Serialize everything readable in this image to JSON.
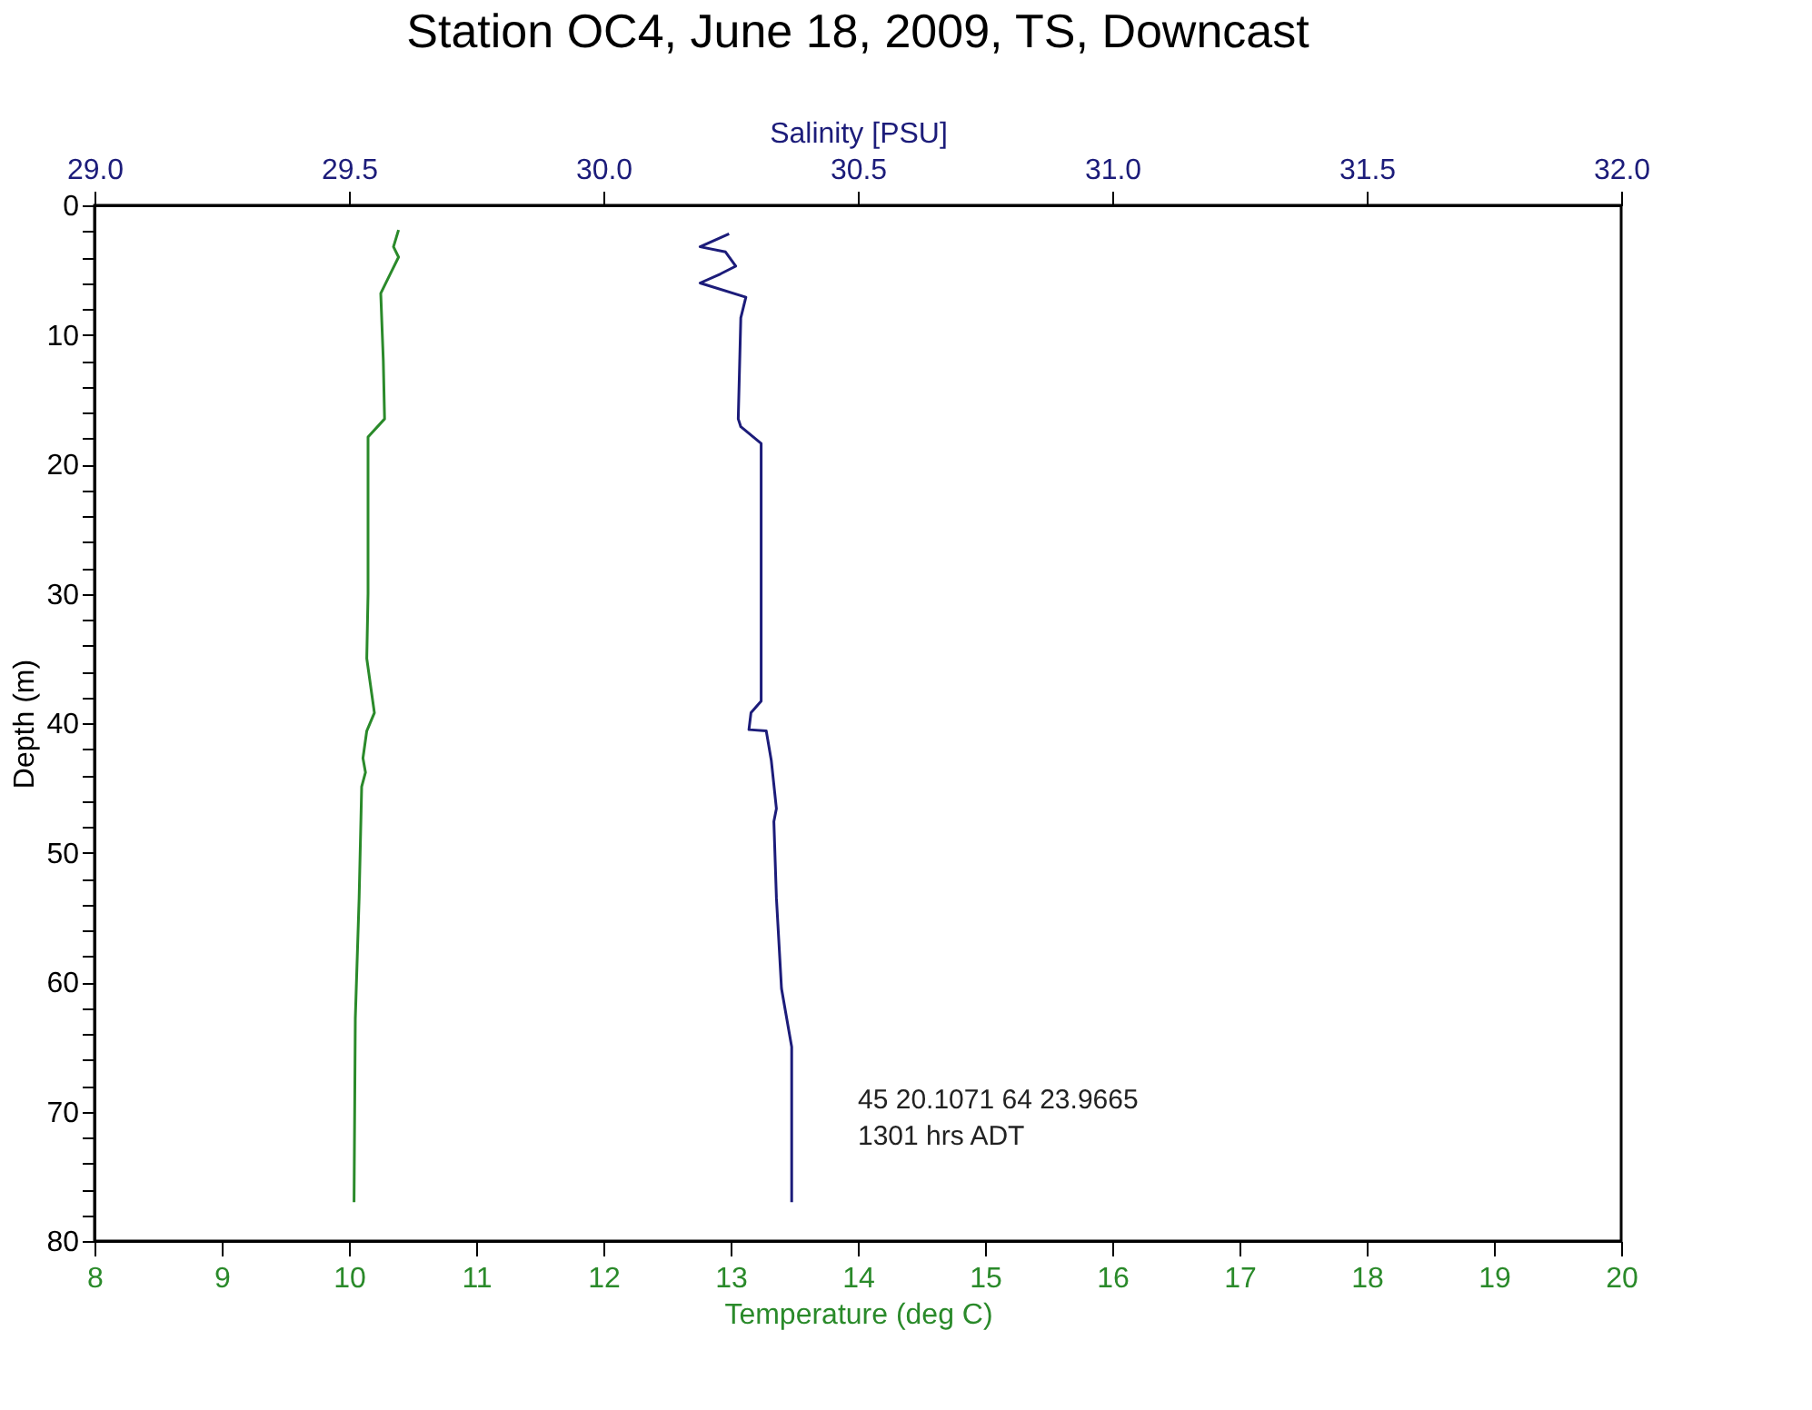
{
  "chart_data": {
    "type": "line",
    "title": "Station OC4, June 18, 2009, TS, Downcast",
    "xlabel": "Temperature (deg C)",
    "x2label": "Salinity [PSU]",
    "ylabel": "Depth (m)",
    "series": [
      {
        "color": "#2a8a2a",
        "x": [
          10.39,
          10.35,
          10.39,
          10.32,
          10.25,
          10.27,
          10.28,
          10.15,
          10.15,
          10.15,
          10.14,
          10.2,
          10.14,
          10.11,
          10.13,
          10.1,
          10.08,
          10.05,
          10.04
        ],
        "values": [
          1.9,
          3.2,
          4.0,
          5.4,
          6.8,
          12,
          16.5,
          17.9,
          25.8,
          30,
          35,
          39.2,
          40.6,
          42.7,
          43.8,
          44.9,
          53.5,
          62.8,
          77
        ]
      },
      {
        "color": "#1c1c7a",
        "axis": "x2",
        "x": [
          30.247,
          30.19,
          30.24,
          30.26,
          30.23,
          30.19,
          30.28,
          30.27,
          30.265,
          30.27,
          30.31,
          30.31,
          30.31,
          30.29,
          30.286,
          30.32,
          30.33,
          30.34,
          30.335,
          30.34,
          30.35,
          30.37,
          30.37
        ],
        "values": [
          2.2,
          3.2,
          3.6,
          4.7,
          5.3,
          6.0,
          7.1,
          8.7,
          16.5,
          17.1,
          18.4,
          27.2,
          38.3,
          39.2,
          40.5,
          40.6,
          42.9,
          46.6,
          47.6,
          53.5,
          60.5,
          65,
          77
        ]
      }
    ],
    "xlim": [
      8,
      20
    ],
    "xticks": [
      8,
      9,
      10,
      11,
      12,
      13,
      14,
      15,
      16,
      17,
      18,
      19,
      20
    ],
    "x2lim": [
      29,
      32
    ],
    "x2ticks": [
      {
        "value": 29,
        "label": "29.0"
      },
      {
        "value": 29.5,
        "label": "29.5"
      },
      {
        "value": 30,
        "label": "30.0"
      },
      {
        "value": 30.5,
        "label": "30.5"
      },
      {
        "value": 31,
        "label": "31.0"
      },
      {
        "value": 31.5,
        "label": "31.5"
      },
      {
        "value": 32,
        "label": "32.0"
      }
    ],
    "ylim": [
      80,
      0
    ],
    "yticks": [
      0,
      {
        "value": 2,
        "label": null
      },
      {
        "value": 4,
        "label": null
      },
      {
        "value": 6,
        "label": null
      },
      {
        "value": 8,
        "label": null
      },
      10,
      {
        "value": 12,
        "label": null
      },
      {
        "value": 14,
        "label": null
      },
      {
        "value": 16,
        "label": null
      },
      {
        "value": 18,
        "label": null
      },
      20,
      {
        "value": 22,
        "label": null
      },
      {
        "value": 24,
        "label": null
      },
      {
        "value": 26,
        "label": null
      },
      {
        "value": 28,
        "label": null
      },
      30,
      {
        "value": 32,
        "label": null
      },
      {
        "value": 34,
        "label": null
      },
      {
        "value": 36,
        "label": null
      },
      {
        "value": 38,
        "label": null
      },
      40,
      {
        "value": 42,
        "label": null
      },
      {
        "value": 44,
        "label": null
      },
      {
        "value": 46,
        "label": null
      },
      {
        "value": 48,
        "label": null
      },
      50,
      {
        "value": 52,
        "label": null
      },
      {
        "value": 54,
        "label": null
      },
      {
        "value": 56,
        "label": null
      },
      {
        "value": 58,
        "label": null
      },
      60,
      {
        "value": 62,
        "label": null
      },
      {
        "value": 64,
        "label": null
      },
      {
        "value": 66,
        "label": null
      },
      {
        "value": 68,
        "label": null
      },
      70,
      {
        "value": 72,
        "label": null
      },
      {
        "value": 74,
        "label": null
      },
      {
        "value": 76,
        "label": null
      },
      {
        "value": 78,
        "label": null
      },
      80
    ],
    "annotations": [
      "45 20.1071    64 23.9665",
      "1301 hrs ADT"
    ],
    "grid": false,
    "marker": "none",
    "line_style": "solid"
  }
}
